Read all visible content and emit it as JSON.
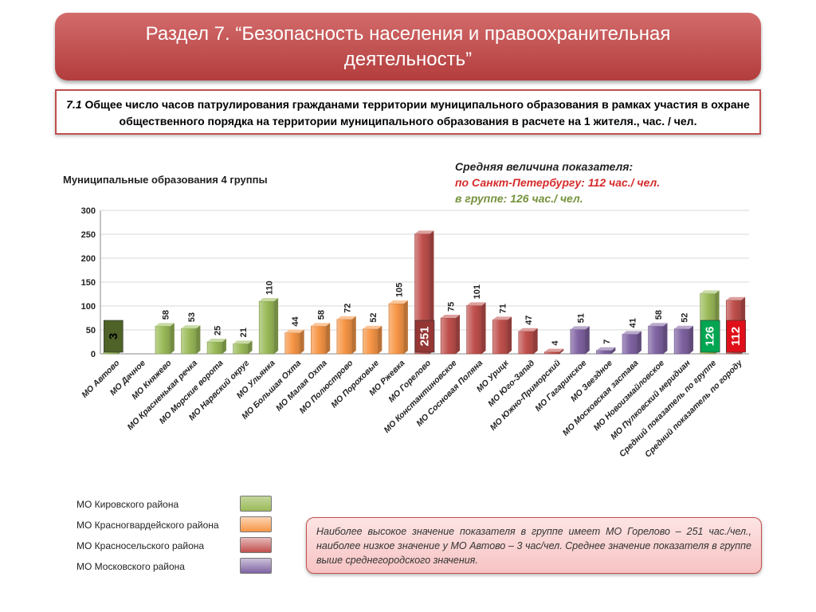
{
  "header": {
    "title": "Раздел 7. “Безопасность населения и правоохранительная деятельность”"
  },
  "indicator": {
    "number": "7.1",
    "text": "Общее число часов патрулирования гражданами территории муниципального образования в рамках участия в охране  общественного порядка на территории муниципального образования в расчете на 1 жителя., час. / чел."
  },
  "averages": {
    "title": "Средняя величина показателя:",
    "spb": "по Санкт-Петербургу: 112 час./ чел.",
    "group": "в группе:  126 час./ чел."
  },
  "group_title": "Муниципальные образования 4 группы",
  "colors": {
    "kirov": "#9bbb59",
    "krasnogv": "#f79646",
    "krasnosel": "#c0504d",
    "moskov": "#8064a2",
    "highlight_min": "#4f6228",
    "highlight_max": "#943634",
    "highlight_group": "#00a651",
    "highlight_city": "#e0101a"
  },
  "chart_data": {
    "type": "bar",
    "ylim": [
      0,
      300
    ],
    "yticks": [
      0,
      50,
      100,
      150,
      200,
      250,
      300
    ],
    "grid": true,
    "categories": [
      "МО Автово",
      "МО Дачное",
      "МО Княжево",
      "МО Красненькая речка",
      "МО Морские ворота",
      "МО Нарвский округ",
      "МО Ульянка",
      "МО Большая Охта",
      "МО Малая Охта",
      "МО Полюстрово",
      "МО Пороховые",
      "МО Ржевка",
      "МО Горелово",
      "МО Константиновское",
      "МО Сосновая Поляна",
      "МО Урицк",
      "МО Юго-Запад",
      "МО Южно-Приморский",
      "МО Гагаринское",
      "МО Звездное",
      "МО Московская застава",
      "МО Новоизмайловское",
      "МО Пулковский меридиан",
      "Средний показатель по группе",
      "Средний показатель по городу"
    ],
    "values": [
      3,
      0,
      58,
      53,
      25,
      21,
      110,
      44,
      58,
      72,
      52,
      105,
      251,
      75,
      101,
      71,
      47,
      4,
      51,
      7,
      41,
      58,
      52,
      126,
      112
    ],
    "groups": [
      "kirov",
      "kirov",
      "kirov",
      "kirov",
      "kirov",
      "kirov",
      "kirov",
      "krasnogv",
      "krasnogv",
      "krasnogv",
      "krasnogv",
      "krasnogv",
      "krasnosel",
      "krasnosel",
      "krasnosel",
      "krasnosel",
      "krasnosel",
      "krasnosel",
      "moskov",
      "moskov",
      "moskov",
      "moskov",
      "moskov",
      "kirov",
      "krasnosel"
    ],
    "labels": [
      "3",
      "",
      "58",
      "53",
      "25",
      "21",
      "110",
      "44",
      "58",
      "72",
      "52",
      "105",
      "251",
      "75",
      "101",
      "71",
      "47",
      "4",
      "51",
      "7",
      "41",
      "58",
      "52",
      "126",
      "112"
    ],
    "highlights": {
      "0": "highlight_min",
      "12": "highlight_max",
      "23": "highlight_group",
      "24": "highlight_city"
    },
    "legend": [
      {
        "label": "МО Кировского района",
        "group": "kirov"
      },
      {
        "label": "МО Красногвардейского района",
        "group": "krasnogv"
      },
      {
        "label": "МО Красносельского района",
        "group": "krasnosel"
      },
      {
        "label": "МО Московского района",
        "group": "moskov"
      }
    ]
  },
  "note": {
    "text": "Наиболее высокое значение показателя в группе имеет МО Горелово – 251 час./чел., наиболее низкое значение у МО Автово – 3 час/чел. Среднее значение показателя в группе выше среднегородского значения."
  }
}
